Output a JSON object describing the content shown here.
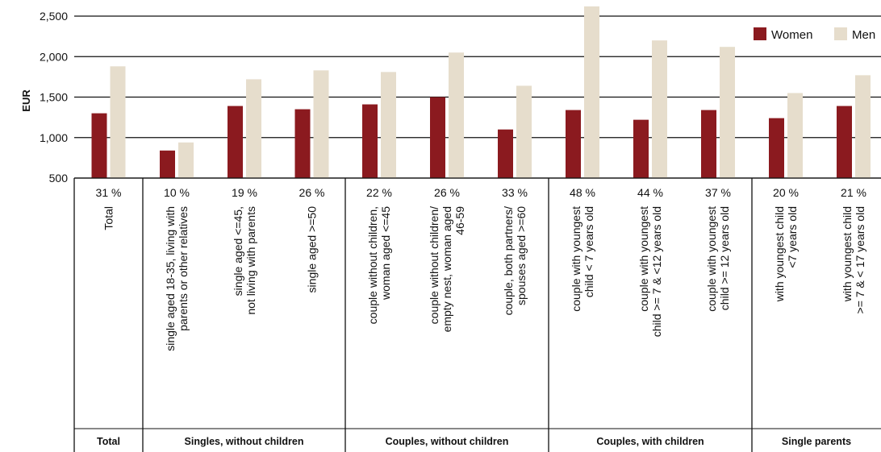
{
  "chart_data": {
    "type": "bar",
    "ylabel": "EUR",
    "ylim": [
      500,
      2500
    ],
    "yticks": [
      "500",
      "1,000",
      "1,500",
      "2,000",
      "2,500"
    ],
    "ytick_values": [
      500,
      1000,
      1500,
      2000,
      2500
    ],
    "grid": true,
    "legend_position": "top-right",
    "colors": {
      "Women": "#8b1a1f",
      "Men": "#e6ddcc"
    },
    "categories": [
      [
        "Total"
      ],
      [
        "single aged 18-35, living with",
        "parents or other relatives"
      ],
      [
        "single aged <=45,",
        "not living with parents"
      ],
      [
        "single aged >=50"
      ],
      [
        "couple without children,",
        "woman aged <=45"
      ],
      [
        "couple without children/",
        "empty nest, woman aged",
        "46-59"
      ],
      [
        "couple, both partners/",
        "spouses aged >=60"
      ],
      [
        "couple with youngest",
        "child < 7 years old"
      ],
      [
        "couple with youngest",
        "child >= 7 & <12  years old"
      ],
      [
        "couple with youngest",
        "child >= 12 years old"
      ],
      [
        "with youngest child",
        "<7 years old"
      ],
      [
        "with youngest child",
        ">= 7 & < 17 years old"
      ]
    ],
    "gap_labels": [
      "31 %",
      "10 %",
      "19 %",
      "26 %",
      "22 %",
      "26 %",
      "33 %",
      "48 %",
      "44 %",
      "37 %",
      "20 %",
      "21 %"
    ],
    "series": [
      {
        "name": "Women",
        "values": [
          1300,
          840,
          1390,
          1350,
          1410,
          1500,
          1100,
          1340,
          1220,
          1340,
          1240,
          1390
        ]
      },
      {
        "name": "Men",
        "values": [
          1880,
          940,
          1720,
          1830,
          1810,
          2050,
          1640,
          2620,
          2200,
          2120,
          1550,
          1770
        ]
      }
    ],
    "groups": [
      {
        "label": "Total",
        "start": 0,
        "end": 0
      },
      {
        "label": "Singles, without children",
        "start": 1,
        "end": 3
      },
      {
        "label": "Couples, without children",
        "start": 4,
        "end": 6
      },
      {
        "label": "Couples, with children",
        "start": 7,
        "end": 9
      },
      {
        "label": "Single parents",
        "start": 10,
        "end": 11
      }
    ]
  }
}
